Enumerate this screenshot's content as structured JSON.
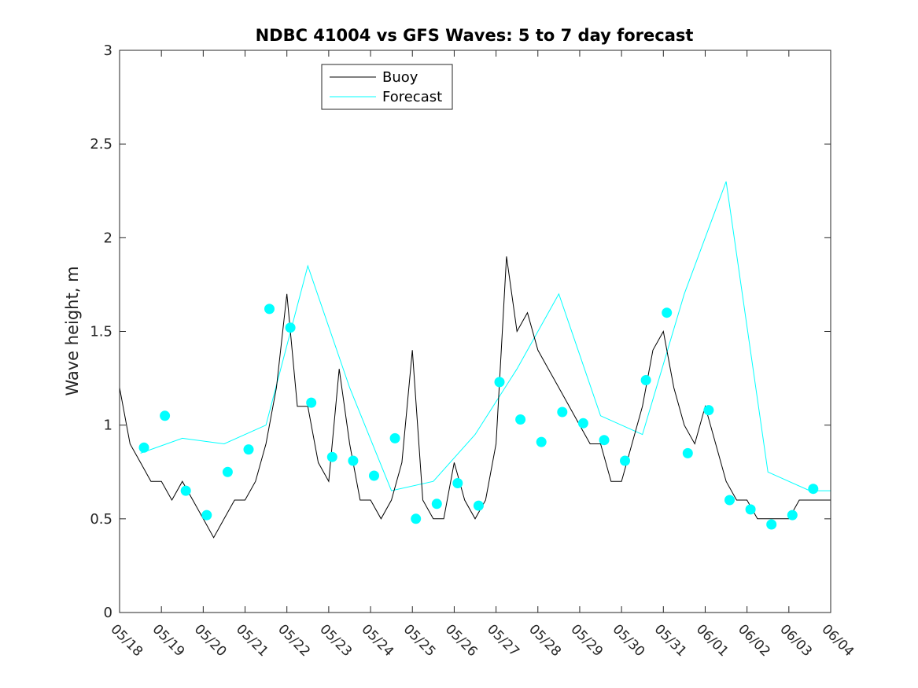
{
  "chart_data": {
    "type": "line",
    "title": "NDBC 41004 vs GFS Waves: 5 to 7 day forecast",
    "ylabel": "Wave height, m",
    "xlabel": "",
    "x_tick_labels": [
      "05/18",
      "05/19",
      "05/20",
      "05/21",
      "05/22",
      "05/23",
      "05/24",
      "05/25",
      "05/26",
      "05/27",
      "05/28",
      "05/29",
      "05/30",
      "05/31",
      "06/01",
      "06/02",
      "06/03",
      "06/04"
    ],
    "y_ticks": [
      0,
      0.5,
      1,
      1.5,
      2,
      2.5,
      3
    ],
    "ylim": [
      0,
      3
    ],
    "grid": false,
    "legend_position": "top-left",
    "colors": {
      "buoy": "#000000",
      "forecast": "#00ffff",
      "axis": "#262626"
    },
    "series": [
      {
        "name": "Buoy",
        "x": [
          "05/18",
          "05/18 06:00",
          "05/18 12:00",
          "05/18 18:00",
          "05/19",
          "05/19 06:00",
          "05/19 12:00",
          "05/19 18:00",
          "05/20",
          "05/20 06:00",
          "05/20 12:00",
          "05/20 18:00",
          "05/21",
          "05/21 06:00",
          "05/21 12:00",
          "05/21 18:00",
          "05/22",
          "05/22 06:00",
          "05/22 12:00",
          "05/22 18:00",
          "05/23",
          "05/23 06:00",
          "05/23 12:00",
          "05/23 18:00",
          "05/24",
          "05/24 06:00",
          "05/24 12:00",
          "05/24 18:00",
          "05/25",
          "05/25 06:00",
          "05/25 12:00",
          "05/25 18:00",
          "05/26",
          "05/26 06:00",
          "05/26 12:00",
          "05/26 18:00",
          "05/27",
          "05/27 06:00",
          "05/27 12:00",
          "05/27 18:00",
          "05/28",
          "05/28 06:00",
          "05/28 12:00",
          "05/28 18:00",
          "05/29",
          "05/29 06:00",
          "05/29 12:00",
          "05/29 18:00",
          "05/30",
          "05/30 06:00",
          "05/30 12:00",
          "05/30 18:00",
          "05/31",
          "05/31 06:00",
          "05/31 12:00",
          "05/31 18:00",
          "06/01",
          "06/01 06:00",
          "06/01 12:00",
          "06/01 18:00",
          "06/02",
          "06/02 06:00",
          "06/02 12:00",
          "06/02 18:00",
          "06/03",
          "06/03 06:00",
          "06/03 12:00",
          "06/03 18:00",
          "06/04"
        ],
        "values": [
          1.2,
          0.9,
          0.8,
          0.7,
          0.7,
          0.6,
          0.7,
          0.6,
          0.5,
          0.4,
          0.5,
          0.6,
          0.6,
          0.7,
          0.9,
          1.2,
          1.7,
          1.1,
          1.1,
          0.8,
          0.7,
          1.3,
          0.9,
          0.6,
          0.6,
          0.5,
          0.6,
          0.8,
          1.4,
          0.6,
          0.5,
          0.5,
          0.8,
          0.6,
          0.5,
          0.6,
          0.9,
          1.9,
          1.5,
          1.6,
          1.4,
          1.3,
          1.2,
          1.1,
          1.0,
          0.9,
          0.9,
          0.7,
          0.7,
          0.9,
          1.1,
          1.4,
          1.5,
          1.2,
          1.0,
          0.9,
          1.1,
          0.9,
          0.7,
          0.6,
          0.6,
          0.5,
          0.5,
          0.5,
          0.5,
          0.6,
          0.6,
          0.6,
          0.6
        ]
      },
      {
        "name": "Forecast",
        "x": [
          "05/18 12:00",
          "05/19 12:00",
          "05/20 12:00",
          "05/21 12:00",
          "05/22 12:00",
          "05/23 12:00",
          "05/24 12:00",
          "05/25 12:00",
          "05/26 12:00",
          "05/27 12:00",
          "05/28 12:00",
          "05/29 12:00",
          "05/30 12:00",
          "05/31 12:00",
          "06/01 12:00",
          "06/02 12:00",
          "06/03 12:00",
          "06/04"
        ],
        "values": [
          0.85,
          0.93,
          0.9,
          1.0,
          1.85,
          1.2,
          0.65,
          0.7,
          0.95,
          1.3,
          1.7,
          1.05,
          0.95,
          1.7,
          2.3,
          0.75,
          0.65,
          0.65
        ]
      }
    ],
    "forecast_markers": {
      "x": [
        "05/18 14:00",
        "05/19 02:00",
        "05/19 14:00",
        "05/20 02:00",
        "05/20 14:00",
        "05/21 02:00",
        "05/21 14:00",
        "05/22 02:00",
        "05/22 14:00",
        "05/23 02:00",
        "05/23 14:00",
        "05/24 02:00",
        "05/24 14:00",
        "05/25 02:00",
        "05/25 14:00",
        "05/26 02:00",
        "05/26 14:00",
        "05/27 02:00",
        "05/27 14:00",
        "05/28 02:00",
        "05/28 14:00",
        "05/29 02:00",
        "05/29 14:00",
        "05/30 02:00",
        "05/30 14:00",
        "05/31 02:00",
        "05/31 14:00",
        "06/01 02:00",
        "06/01 14:00",
        "06/02 02:00",
        "06/02 14:00",
        "06/03 02:00",
        "06/03 14:00"
      ],
      "values": [
        0.88,
        1.05,
        0.65,
        0.52,
        0.75,
        0.87,
        1.62,
        1.52,
        1.12,
        0.83,
        0.81,
        0.73,
        0.93,
        0.5,
        0.58,
        0.69,
        0.57,
        1.23,
        1.03,
        0.91,
        1.07,
        1.01,
        0.92,
        0.81,
        1.24,
        1.6,
        0.85,
        1.08,
        0.6,
        0.55,
        0.47,
        0.52,
        0.66
      ]
    }
  }
}
